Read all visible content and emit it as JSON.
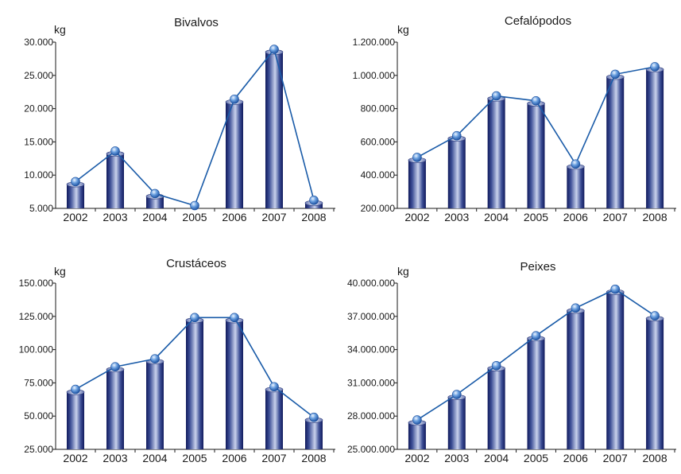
{
  "colors": {
    "bar_dark": "#101a5c",
    "bar_light": "#c9d2ec",
    "line": "#1a5ba8",
    "marker_light": "#cfe2fb",
    "marker_dark": "#1b4f9e",
    "axis": "#1a1a1a"
  },
  "chart_data": [
    {
      "type": "bar",
      "title": "Bivalvos",
      "ylabel": "kg",
      "xlabel": "",
      "categories": [
        "2002",
        "2003",
        "2004",
        "2005",
        "2006",
        "2007",
        "2008"
      ],
      "series": [
        {
          "name": "Bivalvos",
          "values": [
            8600,
            13200,
            6800,
            4800,
            21000,
            28500,
            5800
          ]
        }
      ],
      "ylim": [
        5000,
        30000
      ],
      "yticks": [
        5000,
        10000,
        15000,
        20000,
        25000,
        30000
      ],
      "ytick_labels": [
        "5.000",
        "10.000",
        "15.000",
        "20.000",
        "25.000",
        "30.000"
      ],
      "line_overlay": true
    },
    {
      "type": "bar",
      "title": "Cefalópodos",
      "ylabel": "kg",
      "xlabel": "",
      "categories": [
        "2002",
        "2003",
        "2004",
        "2005",
        "2006",
        "2007",
        "2008"
      ],
      "series": [
        {
          "name": "Cefalópodos",
          "values": [
            490000,
            620000,
            860000,
            830000,
            450000,
            990000,
            1035000
          ]
        }
      ],
      "ylim": [
        200000,
        1200000
      ],
      "yticks": [
        200000,
        400000,
        600000,
        800000,
        1000000,
        1200000
      ],
      "ytick_labels": [
        "200.000",
        "400.000",
        "600.000",
        "800.000",
        "1.000.000",
        "1.200.000"
      ],
      "line_overlay": true
    },
    {
      "type": "bar",
      "title": "Crustáceos",
      "ylabel": "kg",
      "xlabel": "",
      "categories": [
        "2002",
        "2003",
        "2004",
        "2005",
        "2006",
        "2007",
        "2008"
      ],
      "series": [
        {
          "name": "Crustáceos",
          "values": [
            68000,
            85000,
            91000,
            122000,
            122000,
            70000,
            47000
          ]
        }
      ],
      "ylim": [
        25000,
        150000
      ],
      "yticks": [
        25000,
        50000,
        75000,
        100000,
        125000,
        150000
      ],
      "ytick_labels": [
        "25.000",
        "50.000",
        "75.000",
        "100.000",
        "125.000",
        "150.000"
      ],
      "line_overlay": true
    },
    {
      "type": "bar",
      "title": "Peixes",
      "ylabel": "kg",
      "xlabel": "",
      "categories": [
        "2002",
        "2003",
        "2004",
        "2005",
        "2006",
        "2007",
        "2008"
      ],
      "series": [
        {
          "name": "Peixes",
          "values": [
            27400000,
            29700000,
            32300000,
            35000000,
            37500000,
            39200000,
            36800000
          ]
        }
      ],
      "ylim": [
        25000000,
        40000000
      ],
      "yticks": [
        25000000,
        28000000,
        31000000,
        34000000,
        37000000,
        40000000
      ],
      "ytick_labels": [
        "25.000.000",
        "28.000.000",
        "31.000.000",
        "34.000.000",
        "37.000.000",
        "40.000.000"
      ],
      "line_overlay": true
    }
  ]
}
